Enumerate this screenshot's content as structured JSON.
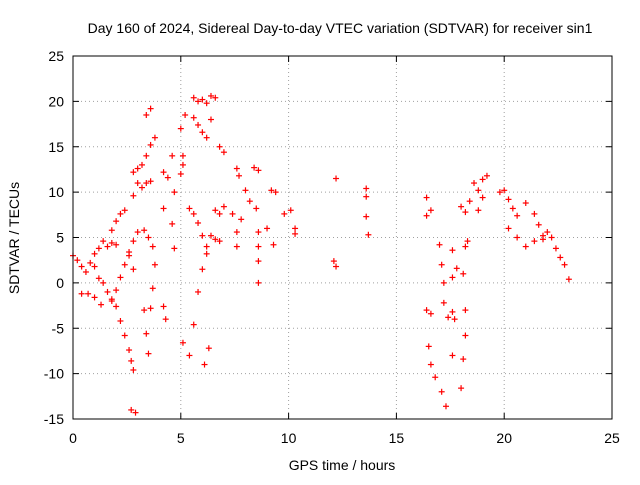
{
  "chart_data": {
    "type": "scatter",
    "title": "Day 160 of 2024, Sidereal Day-to-day VTEC variation (SDTVAR) for receiver sin1",
    "xlabel": "GPS time / hours",
    "ylabel": "SDTVAR / TECUs",
    "xlim": [
      0,
      25
    ],
    "ylim": [
      -15,
      25
    ],
    "xticks": [
      0,
      5,
      10,
      15,
      20,
      25
    ],
    "yticks": [
      -15,
      -10,
      -5,
      0,
      5,
      10,
      15,
      20,
      25
    ],
    "grid": true,
    "marker": "+",
    "color": "#ff0000",
    "series": [
      {
        "name": "SDTVAR",
        "points": [
          [
            0.0,
            3.0
          ],
          [
            0.2,
            2.5
          ],
          [
            0.4,
            1.8
          ],
          [
            0.6,
            1.2
          ],
          [
            0.8,
            2.2
          ],
          [
            1.0,
            1.8
          ],
          [
            1.2,
            0.5
          ],
          [
            1.4,
            0.0
          ],
          [
            1.6,
            -1.0
          ],
          [
            1.8,
            -1.8
          ],
          [
            2.0,
            -2.6
          ],
          [
            2.2,
            -4.2
          ],
          [
            2.4,
            -5.8
          ],
          [
            2.6,
            -7.4
          ],
          [
            2.7,
            -8.6
          ],
          [
            2.8,
            -9.6
          ],
          [
            0.4,
            -1.2
          ],
          [
            0.7,
            -1.2
          ],
          [
            1.0,
            -1.6
          ],
          [
            1.3,
            -2.4
          ],
          [
            1.0,
            3.2
          ],
          [
            1.2,
            3.8
          ],
          [
            1.4,
            4.6
          ],
          [
            1.6,
            4.0
          ],
          [
            1.8,
            4.4
          ],
          [
            2.0,
            4.2
          ],
          [
            1.8,
            5.8
          ],
          [
            2.0,
            6.8
          ],
          [
            2.2,
            7.6
          ],
          [
            2.4,
            8.0
          ],
          [
            1.8,
            -2.0
          ],
          [
            2.0,
            -0.8
          ],
          [
            2.2,
            0.6
          ],
          [
            2.4,
            2.0
          ],
          [
            2.6,
            3.4
          ],
          [
            2.8,
            4.6
          ],
          [
            3.0,
            5.6
          ],
          [
            2.8,
            9.6
          ],
          [
            3.0,
            11.0
          ],
          [
            2.8,
            12.2
          ],
          [
            3.0,
            12.6
          ],
          [
            3.2,
            13.0
          ],
          [
            3.2,
            10.5
          ],
          [
            3.4,
            11.0
          ],
          [
            3.6,
            11.2
          ],
          [
            3.4,
            14.0
          ],
          [
            3.6,
            15.2
          ],
          [
            3.8,
            16.0
          ],
          [
            3.4,
            18.5
          ],
          [
            3.6,
            19.2
          ],
          [
            3.3,
            5.8
          ],
          [
            3.5,
            5.0
          ],
          [
            3.7,
            4.0
          ],
          [
            3.8,
            2.0
          ],
          [
            3.3,
            -3.0
          ],
          [
            3.4,
            -5.6
          ],
          [
            3.5,
            -7.8
          ],
          [
            3.6,
            -2.8
          ],
          [
            3.7,
            -0.6
          ],
          [
            2.6,
            3.0
          ],
          [
            2.8,
            1.5
          ],
          [
            2.7,
            -14.0
          ],
          [
            2.9,
            -14.3
          ],
          [
            4.2,
            8.2
          ],
          [
            4.4,
            11.6
          ],
          [
            4.2,
            12.2
          ],
          [
            4.2,
            -2.6
          ],
          [
            4.3,
            -4.0
          ],
          [
            4.6,
            14.0
          ],
          [
            4.7,
            10.0
          ],
          [
            4.6,
            6.5
          ],
          [
            4.7,
            3.8
          ],
          [
            5.0,
            17.0
          ],
          [
            5.1,
            13.0
          ],
          [
            5.0,
            12.0
          ],
          [
            5.1,
            14.0
          ],
          [
            5.2,
            18.5
          ],
          [
            5.1,
            -6.6
          ],
          [
            5.6,
            20.4
          ],
          [
            5.8,
            20.0
          ],
          [
            6.0,
            20.2
          ],
          [
            6.2,
            19.8
          ],
          [
            6.4,
            20.6
          ],
          [
            5.6,
            18.2
          ],
          [
            5.8,
            17.4
          ],
          [
            6.0,
            16.6
          ],
          [
            6.2,
            16.0
          ],
          [
            6.4,
            18.0
          ],
          [
            6.6,
            20.4
          ],
          [
            5.4,
            8.2
          ],
          [
            5.6,
            7.6
          ],
          [
            5.8,
            6.6
          ],
          [
            6.0,
            5.2
          ],
          [
            6.2,
            4.0
          ],
          [
            5.4,
            -8.0
          ],
          [
            5.6,
            -4.6
          ],
          [
            5.8,
            -1.0
          ],
          [
            6.0,
            1.5
          ],
          [
            6.2,
            3.2
          ],
          [
            6.1,
            -9.0
          ],
          [
            6.3,
            -7.2
          ],
          [
            6.4,
            5.2
          ],
          [
            6.6,
            8.0
          ],
          [
            6.8,
            7.6
          ],
          [
            6.6,
            4.8
          ],
          [
            6.8,
            4.6
          ],
          [
            7.0,
            8.4
          ],
          [
            6.8,
            15.0
          ],
          [
            7.0,
            14.4
          ],
          [
            7.6,
            12.6
          ],
          [
            7.7,
            11.8
          ],
          [
            7.4,
            7.6
          ],
          [
            7.6,
            5.6
          ],
          [
            7.6,
            4.0
          ],
          [
            7.8,
            7.0
          ],
          [
            8.0,
            10.2
          ],
          [
            8.2,
            9.0
          ],
          [
            8.4,
            12.7
          ],
          [
            8.6,
            12.4
          ],
          [
            8.5,
            8.2
          ],
          [
            8.6,
            5.6
          ],
          [
            8.6,
            4.0
          ],
          [
            8.6,
            2.4
          ],
          [
            8.6,
            0.0
          ],
          [
            9.2,
            10.2
          ],
          [
            9.4,
            10.0
          ],
          [
            9.0,
            6.0
          ],
          [
            9.3,
            4.2
          ],
          [
            9.8,
            7.6
          ],
          [
            10.1,
            8.0
          ],
          [
            10.3,
            5.4
          ],
          [
            10.3,
            6.0
          ],
          [
            12.2,
            11.5
          ],
          [
            12.1,
            2.4
          ],
          [
            12.2,
            1.8
          ],
          [
            13.6,
            10.4
          ],
          [
            13.6,
            9.5
          ],
          [
            13.6,
            7.3
          ],
          [
            13.7,
            5.3
          ],
          [
            16.4,
            9.4
          ],
          [
            16.6,
            8.0
          ],
          [
            16.4,
            7.4
          ],
          [
            16.4,
            -3.0
          ],
          [
            16.6,
            -3.4
          ],
          [
            16.5,
            -7.0
          ],
          [
            16.6,
            -9.0
          ],
          [
            16.8,
            -10.4
          ],
          [
            17.0,
            4.2
          ],
          [
            17.1,
            2.0
          ],
          [
            17.2,
            0.0
          ],
          [
            17.2,
            -2.2
          ],
          [
            17.4,
            -3.8
          ],
          [
            17.1,
            -12.0
          ],
          [
            17.3,
            -13.6
          ],
          [
            17.6,
            3.6
          ],
          [
            17.8,
            1.6
          ],
          [
            17.6,
            0.6
          ],
          [
            17.6,
            -3.2
          ],
          [
            17.7,
            -4.0
          ],
          [
            17.6,
            -8.0
          ],
          [
            18.0,
            -11.6
          ],
          [
            18.1,
            -8.4
          ],
          [
            18.2,
            -5.8
          ],
          [
            18.2,
            -3.0
          ],
          [
            18.0,
            8.4
          ],
          [
            18.2,
            7.8
          ],
          [
            18.3,
            4.6
          ],
          [
            18.2,
            4.0
          ],
          [
            18.1,
            1.0
          ],
          [
            18.4,
            9.0
          ],
          [
            18.6,
            11.0
          ],
          [
            18.8,
            10.2
          ],
          [
            19.0,
            11.4
          ],
          [
            19.2,
            11.8
          ],
          [
            18.8,
            8.0
          ],
          [
            19.0,
            9.4
          ],
          [
            19.8,
            10.0
          ],
          [
            20.0,
            10.2
          ],
          [
            20.2,
            9.2
          ],
          [
            20.4,
            8.2
          ],
          [
            20.6,
            7.4
          ],
          [
            20.2,
            6.0
          ],
          [
            20.6,
            5.0
          ],
          [
            21.0,
            4.0
          ],
          [
            21.4,
            4.6
          ],
          [
            21.8,
            4.8
          ],
          [
            21.0,
            8.8
          ],
          [
            21.4,
            7.6
          ],
          [
            21.6,
            6.4
          ],
          [
            21.8,
            5.2
          ],
          [
            22.0,
            5.6
          ],
          [
            22.2,
            5.0
          ],
          [
            22.4,
            3.8
          ],
          [
            22.6,
            2.8
          ],
          [
            22.8,
            2.0
          ],
          [
            23.0,
            0.4
          ]
        ]
      }
    ]
  }
}
